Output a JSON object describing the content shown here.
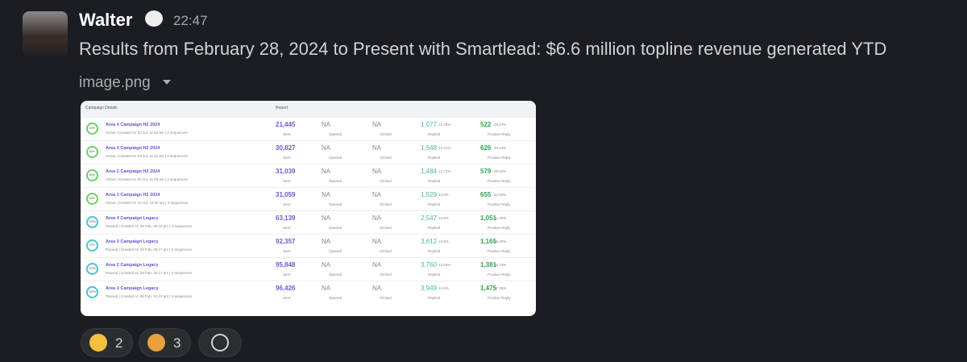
{
  "message": {
    "author": "Walter",
    "time": "22:47",
    "text": "Results from February 28, 2024 to Present with Smartlead: $6.6 million topline revenue generated YTD",
    "attachment": "image.png"
  },
  "table": {
    "headers": [
      "Campaign Details",
      "Report"
    ],
    "labels": {
      "sent": "Sent",
      "opened": "Opened",
      "clicked": "Clicked",
      "replied": "Replied",
      "positive": "Positive Reply"
    },
    "rows": [
      {
        "progress": "53%",
        "name": "Area 4 Campaign H2 2024",
        "status": "Active | Created At: 03 Jul, 11:46 am | 4 sequences",
        "sent": "21,445",
        "opened": "NA",
        "clicked": "NA",
        "replied": "1,077",
        "replied_pct": "12.28%",
        "positive": "522",
        "positive_pct": "48.47%"
      },
      {
        "progress": "50%",
        "name": "Area 3 Campaign H2 2024",
        "status": "Active | Created At: 03 Jul, 11:42 am | 4 sequences",
        "sent": "30,827",
        "opened": "NA",
        "clicked": "NA",
        "replied": "1,548",
        "replied_pct": "13.21%",
        "positive": "626",
        "positive_pct": "40.44%"
      },
      {
        "progress": "50%",
        "name": "Area 2 Campaign H2 2024",
        "status": "Active | Created At: 03 Jul, 11:09 am | 4 sequences",
        "sent": "31,039",
        "opened": "NA",
        "clicked": "NA",
        "replied": "1,484",
        "replied_pct": "12.71%",
        "positive": "579",
        "positive_pct": "39.02%"
      },
      {
        "progress": "50%",
        "name": "Area 1 Campaign H2 2024",
        "status": "Active | Created At: 03 Jul, 10:30 am | 4 sequences",
        "sent": "31,059",
        "opened": "NA",
        "clicked": "NA",
        "replied": "1,529",
        "replied_pct": "13.0%",
        "positive": "655",
        "positive_pct": "42.84%"
      },
      {
        "progress": "100%",
        "name": "Area 4 Campaign Legacy",
        "status": "Paused | Created At: 28 Feb, 05:18 pm | 4 sequences",
        "sent": "63,139",
        "opened": "NA",
        "clicked": "NA",
        "replied": "2,547",
        "replied_pct": "13.6%",
        "positive": "1,051",
        "positive_pct": "41.26%"
      },
      {
        "progress": "97%",
        "name": "Area 3 Campaign Legacy",
        "status": "Paused | Created At: 28 Feb, 05:17 pm | 4 sequences",
        "sent": "92,357",
        "opened": "NA",
        "clicked": "NA",
        "replied": "3,612",
        "replied_pct": "13.5%",
        "positive": "1,165",
        "positive_pct": "32.25%"
      },
      {
        "progress": "100%",
        "name": "Area 2 Campaign Legacy",
        "status": "Paused | Created At: 28 Feb, 05:17 pm | 4 sequences",
        "sent": "95,848",
        "opened": "NA",
        "clicked": "NA",
        "replied": "3,760",
        "replied_pct": "13.63%",
        "positive": "1,381",
        "positive_pct": "36.73%"
      },
      {
        "progress": "100%",
        "name": "Area 1 Campaign Legacy",
        "status": "Paused | Created At: 28 Feb, 01:23 pm | 4 sequences",
        "sent": "96,426",
        "opened": "NA",
        "clicked": "NA",
        "replied": "3,949",
        "replied_pct": "14.4%",
        "positive": "1,475",
        "positive_pct": "37.35%"
      }
    ]
  },
  "reactions": [
    {
      "count": "2"
    },
    {
      "count": "3"
    }
  ]
}
